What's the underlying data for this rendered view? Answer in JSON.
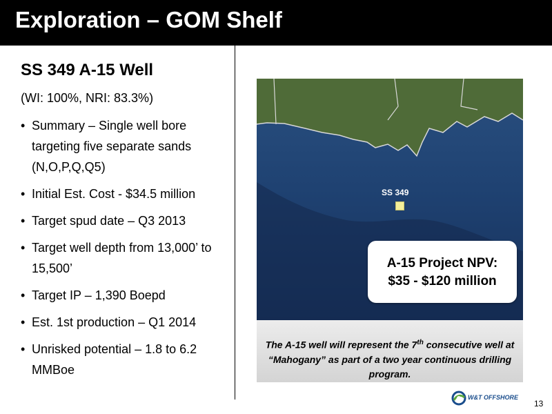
{
  "header": {
    "title": "Exploration – GOM Shelf"
  },
  "left": {
    "subtitle": "SS 349 A-15 Well",
    "wi_line": "(WI: 100%, NRI: 83.3%)",
    "bullets": [
      "Summary – Single well bore targeting five separate sands (N,O,P,Q,Q5)",
      "Initial Est. Cost - $34.5 million",
      "Target spud date – Q3 2013",
      "Target well depth from 13,000’ to 15,500’",
      "Target IP – 1,390 Boepd",
      "Est. 1st production – Q1 2014",
      "Unrisked potential – 1.8 to 6.2 MMBoe"
    ]
  },
  "map": {
    "well_label": "SS 349",
    "npv_line1": "A-15 Project NPV:",
    "npv_line2": "$35 - $120 million",
    "marker_color": "#f3ef9a"
  },
  "caption": {
    "part1": "The A-15 well will represent the 7",
    "superscript": "th",
    "part2": " consecutive well at “Mahogany” as part of a two year continuous drilling program."
  },
  "footer": {
    "logo_text": "W&T OFFSHORE",
    "page_number": "13"
  },
  "colors": {
    "header_bg": "#000000",
    "ocean": "#1e3c6d",
    "land": "#4f6b38",
    "logo_blue": "#1a4d8c",
    "logo_green": "#5aa83c"
  }
}
